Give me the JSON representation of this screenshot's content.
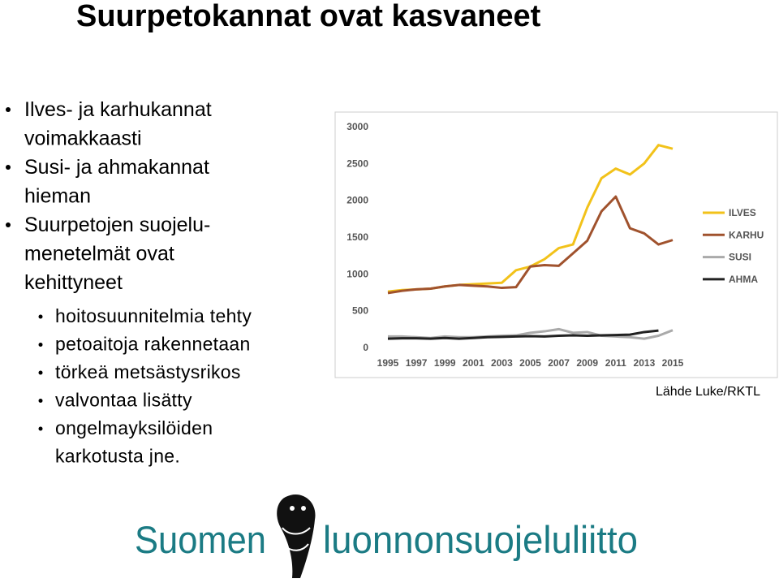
{
  "title": "Suurpetokannat ovat kasvaneet",
  "bullets": [
    [
      "Ilves- ja karhukannat",
      "voimakkaasti"
    ],
    [
      "Susi- ja ahmakannat",
      "hieman"
    ],
    [
      "Suurpetojen suojelu-",
      "menetelmät ovat",
      "kehittyneet"
    ]
  ],
  "subbullets": [
    [
      "hoitosuunnitelmia tehty"
    ],
    [
      "petoaitoja rakennetaan"
    ],
    [
      "törkeä metsästysrikos"
    ],
    [
      "valvontaa lisätty"
    ],
    [
      "ongelmayksilöiden",
      "karkotusta jne."
    ]
  ],
  "source": "Lähde Luke/RKTL",
  "logo": [
    "Suomen",
    "luonnonsuojeluliitto"
  ],
  "chart_data": {
    "type": "line",
    "x": [
      1995,
      1996,
      1997,
      1998,
      1999,
      2000,
      2001,
      2002,
      2003,
      2004,
      2005,
      2006,
      2007,
      2008,
      2009,
      2010,
      2011,
      2012,
      2013,
      2014,
      2015
    ],
    "series": [
      {
        "name": "ILVES",
        "color": "#f2c21a",
        "values": [
          760,
          780,
          790,
          800,
          830,
          850,
          860,
          870,
          880,
          1050,
          1100,
          1200,
          1350,
          1400,
          1900,
          2300,
          2430,
          2350,
          2500,
          2750,
          2700
        ]
      },
      {
        "name": "KARHU",
        "color": "#a0522d",
        "values": [
          740,
          770,
          790,
          800,
          830,
          850,
          840,
          830,
          810,
          820,
          1100,
          1120,
          1110,
          1280,
          1450,
          1850,
          2050,
          1620,
          1550,
          1400,
          1460
        ]
      },
      {
        "name": "SUSI",
        "color": "#aaaaaa",
        "values": [
          150,
          150,
          140,
          130,
          150,
          140,
          140,
          150,
          160,
          165,
          200,
          220,
          250,
          200,
          210,
          160,
          150,
          140,
          120,
          160,
          235
        ]
      },
      {
        "name": "AHMA",
        "color": "#222222",
        "values": [
          120,
          125,
          125,
          120,
          130,
          120,
          130,
          140,
          145,
          150,
          155,
          150,
          160,
          165,
          160,
          165,
          170,
          175,
          210,
          230,
          null
        ]
      }
    ],
    "xlim": [
      1995,
      2015
    ],
    "xticks": [
      1995,
      1997,
      1999,
      2001,
      2003,
      2005,
      2007,
      2009,
      2011,
      2013,
      2015
    ],
    "ylim": [
      0,
      3000
    ],
    "yticks": [
      0,
      500,
      1000,
      1500,
      2000,
      2500,
      3000
    ],
    "grid": false,
    "legend": "right"
  }
}
